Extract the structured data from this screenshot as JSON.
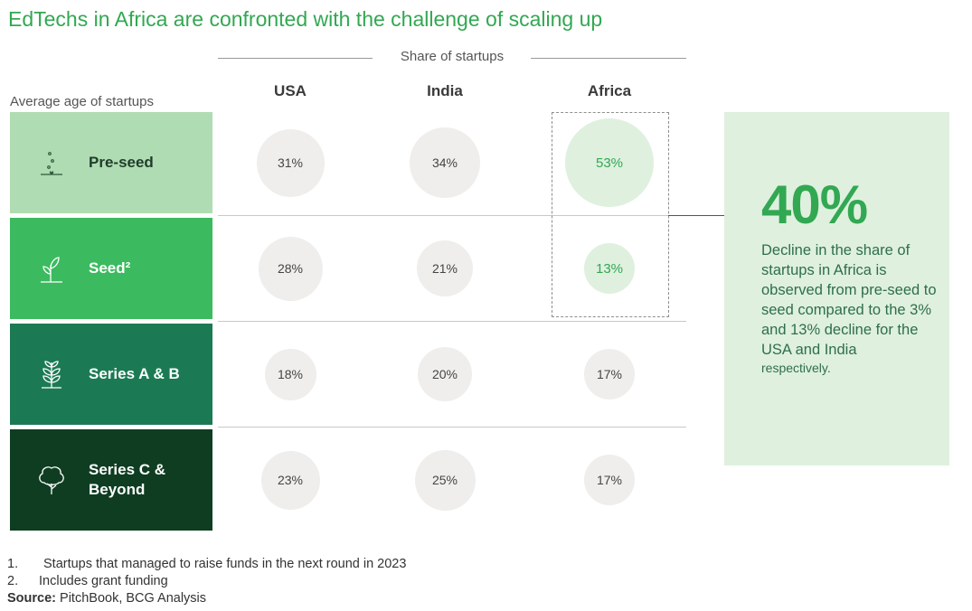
{
  "title": "EdTechs in Africa are confronted with the challenge of scaling up",
  "share_label": "Share of startups",
  "age_label": "Average age of startups",
  "colors": {
    "accent": "#32a852",
    "preseed": "#b0dcb3",
    "seed": "#3bba5f",
    "series_ab": "#1b7a54",
    "series_c": "#0f3d22",
    "highlight_bg": "#dff0df",
    "bubble_grey": "#efeeec"
  },
  "chart_data": {
    "type": "table",
    "columns": [
      "USA",
      "India",
      "Africa"
    ],
    "rows": [
      {
        "stage": "Pre-seed",
        "icon": "seed-dots-icon",
        "values": [
          31,
          34,
          53
        ],
        "labels": [
          "31%",
          "34%",
          "53%"
        ]
      },
      {
        "stage": "Seed²",
        "icon": "sprout-icon",
        "values": [
          28,
          21,
          13
        ],
        "labels": [
          "28%",
          "21%",
          "13%"
        ]
      },
      {
        "stage": "Series A & B",
        "icon": "leafy-plant-icon",
        "values": [
          18,
          20,
          17
        ],
        "labels": [
          "18%",
          "20%",
          "17%"
        ]
      },
      {
        "stage": "Series C & Beyond",
        "icon": "tree-icon",
        "values": [
          23,
          25,
          17
        ],
        "labels": [
          "23%",
          "25%",
          "17%"
        ]
      }
    ],
    "highlighted": {
      "column": "Africa",
      "rows": [
        "Pre-seed",
        "Seed²"
      ]
    },
    "unit": "%"
  },
  "callout": {
    "big_number": "40%",
    "text": "Decline in the share of startups in Africa is observed from pre-seed to seed compared to the 3% and 13% decline for the USA and India",
    "text_small": "respectively."
  },
  "footnotes": [
    {
      "num": "1.",
      "text": "Startups that managed to raise funds in the next round in 2023"
    },
    {
      "num": "2.",
      "text": "Includes grant funding"
    }
  ],
  "source": {
    "label": "Source:",
    "text": "PitchBook, BCG Analysis"
  }
}
